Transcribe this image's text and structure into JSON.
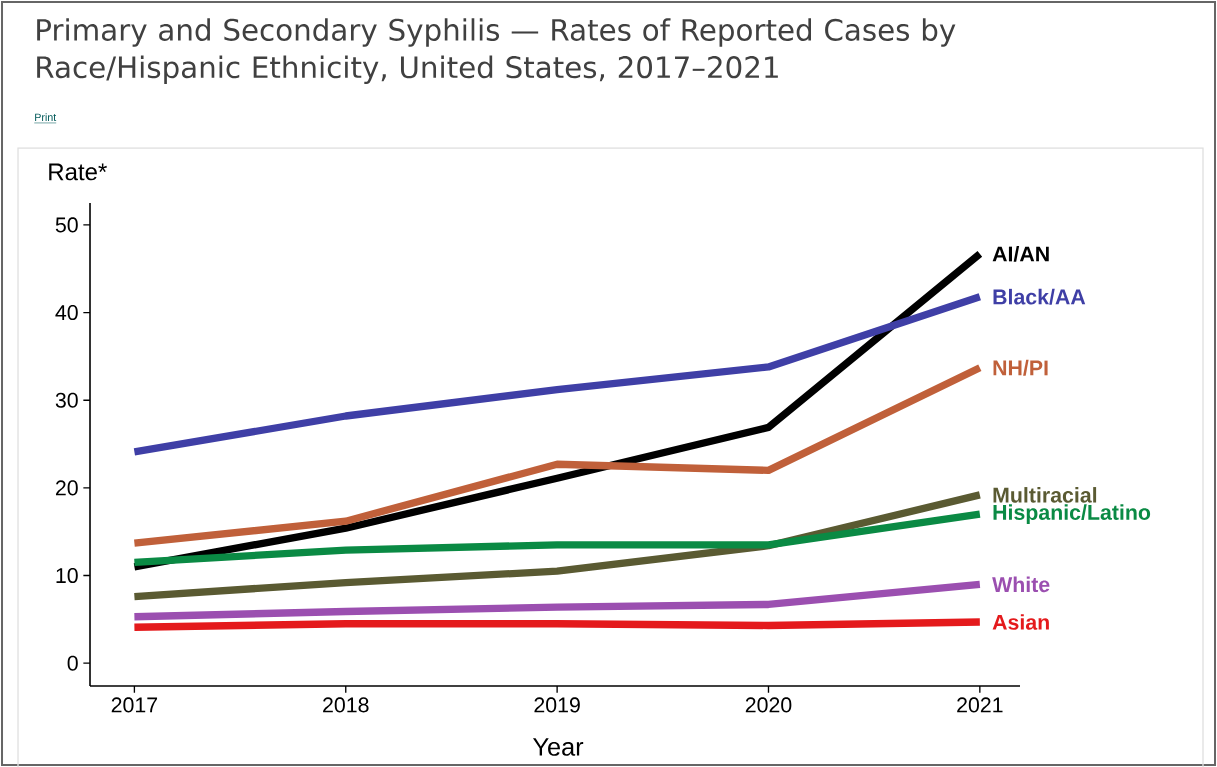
{
  "chart_data": {
    "type": "line",
    "title": "Primary and Secondary Syphilis — Rates of Reported Cases by Race/Hispanic Ethnicity, United States, 2017–2021",
    "xlabel": "Year",
    "ylabel": "Rate*",
    "annotations": [
      "Print"
    ],
    "x": [
      2017,
      2018,
      2019,
      2020,
      2021
    ],
    "series": [
      {
        "name": "AI/AN",
        "color": "#000000",
        "values": [
          11.0,
          15.4,
          21.1,
          26.9,
          46.7
        ]
      },
      {
        "name": "Black/AA",
        "color": "#3f3fa6",
        "values": [
          24.1,
          28.2,
          31.2,
          33.8,
          41.8
        ]
      },
      {
        "name": "NH/PI",
        "color": "#c0603a",
        "values": [
          13.7,
          16.2,
          22.7,
          22.0,
          33.7
        ]
      },
      {
        "name": "Multiracial",
        "color": "#5a5a32",
        "values": [
          7.6,
          9.2,
          10.5,
          13.4,
          19.2
        ]
      },
      {
        "name": "Hispanic/Latino",
        "color": "#0a8a44",
        "values": [
          11.5,
          12.9,
          13.5,
          13.5,
          17.0
        ]
      },
      {
        "name": "White",
        "color": "#9b4fb0",
        "values": [
          5.3,
          5.9,
          6.4,
          6.7,
          9.0
        ]
      },
      {
        "name": "Asian",
        "color": "#e41a1c",
        "values": [
          4.1,
          4.5,
          4.5,
          4.3,
          4.7
        ]
      }
    ],
    "xlim": [
      2016.79,
      2021.19
    ],
    "ylim": [
      -2.6,
      52.5
    ],
    "xticks": [
      2017,
      2018,
      2019,
      2020,
      2021
    ],
    "yticks": [
      0,
      10,
      20,
      30,
      40,
      50
    ]
  }
}
